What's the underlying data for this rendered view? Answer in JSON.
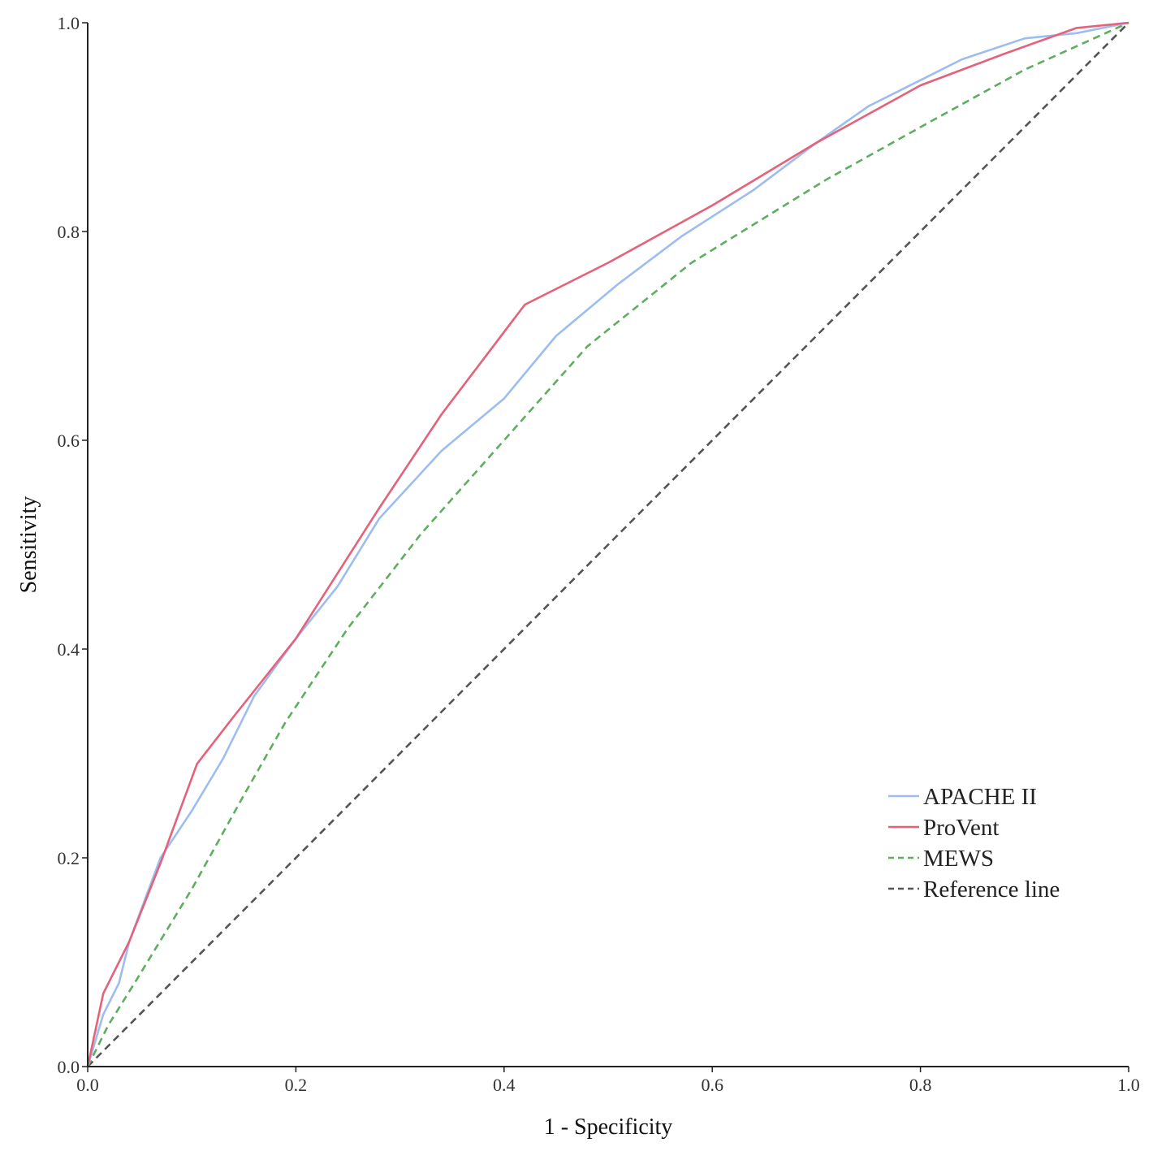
{
  "chart_data": {
    "type": "line",
    "xlabel": "1 - Specificity",
    "ylabel": "Sensitivity",
    "xlim": [
      0,
      1
    ],
    "ylim": [
      0,
      1
    ],
    "x_ticks": [
      "0.0",
      "0.2",
      "0.4",
      "0.6",
      "0.8",
      "1.0"
    ],
    "y_ticks": [
      "0.0",
      "0.2",
      "0.4",
      "0.6",
      "0.8",
      "1.0"
    ],
    "grid": false,
    "legend_position": "bottom-right",
    "series": [
      {
        "name": "APACHE II",
        "color": "#9dbdf0",
        "dash": "solid",
        "points": [
          [
            0,
            0
          ],
          [
            0.015,
            0.05
          ],
          [
            0.03,
            0.08
          ],
          [
            0.04,
            0.12
          ],
          [
            0.07,
            0.2
          ],
          [
            0.1,
            0.245
          ],
          [
            0.13,
            0.295
          ],
          [
            0.16,
            0.355
          ],
          [
            0.2,
            0.41
          ],
          [
            0.24,
            0.46
          ],
          [
            0.28,
            0.525
          ],
          [
            0.34,
            0.59
          ],
          [
            0.4,
            0.64
          ],
          [
            0.45,
            0.7
          ],
          [
            0.51,
            0.75
          ],
          [
            0.57,
            0.795
          ],
          [
            0.64,
            0.84
          ],
          [
            0.7,
            0.885
          ],
          [
            0.75,
            0.92
          ],
          [
            0.8,
            0.945
          ],
          [
            0.84,
            0.965
          ],
          [
            0.9,
            0.985
          ],
          [
            0.95,
            0.99
          ],
          [
            1,
            1
          ]
        ]
      },
      {
        "name": "ProVent",
        "color": "#e4627a",
        "dash": "solid",
        "points": [
          [
            0,
            0
          ],
          [
            0.015,
            0.07
          ],
          [
            0.04,
            0.12
          ],
          [
            0.07,
            0.195
          ],
          [
            0.105,
            0.29
          ],
          [
            0.14,
            0.335
          ],
          [
            0.2,
            0.41
          ],
          [
            0.28,
            0.535
          ],
          [
            0.34,
            0.625
          ],
          [
            0.42,
            0.73
          ],
          [
            0.5,
            0.77
          ],
          [
            0.6,
            0.825
          ],
          [
            0.7,
            0.885
          ],
          [
            0.8,
            0.94
          ],
          [
            0.88,
            0.97
          ],
          [
            0.95,
            0.995
          ],
          [
            1,
            1
          ]
        ]
      },
      {
        "name": "MEWS",
        "color": "#5fae5f",
        "dash": "dashed",
        "points": [
          [
            0,
            0
          ],
          [
            0.02,
            0.04
          ],
          [
            0.045,
            0.08
          ],
          [
            0.1,
            0.17
          ],
          [
            0.15,
            0.26
          ],
          [
            0.19,
            0.33
          ],
          [
            0.25,
            0.42
          ],
          [
            0.32,
            0.51
          ],
          [
            0.4,
            0.6
          ],
          [
            0.48,
            0.69
          ],
          [
            0.58,
            0.77
          ],
          [
            0.71,
            0.85
          ],
          [
            0.8,
            0.9
          ],
          [
            0.9,
            0.955
          ],
          [
            1,
            1
          ]
        ]
      },
      {
        "name": "Reference line",
        "color": "#555555",
        "dash": "dashed",
        "points": [
          [
            0,
            0
          ],
          [
            1,
            1
          ]
        ]
      }
    ]
  }
}
